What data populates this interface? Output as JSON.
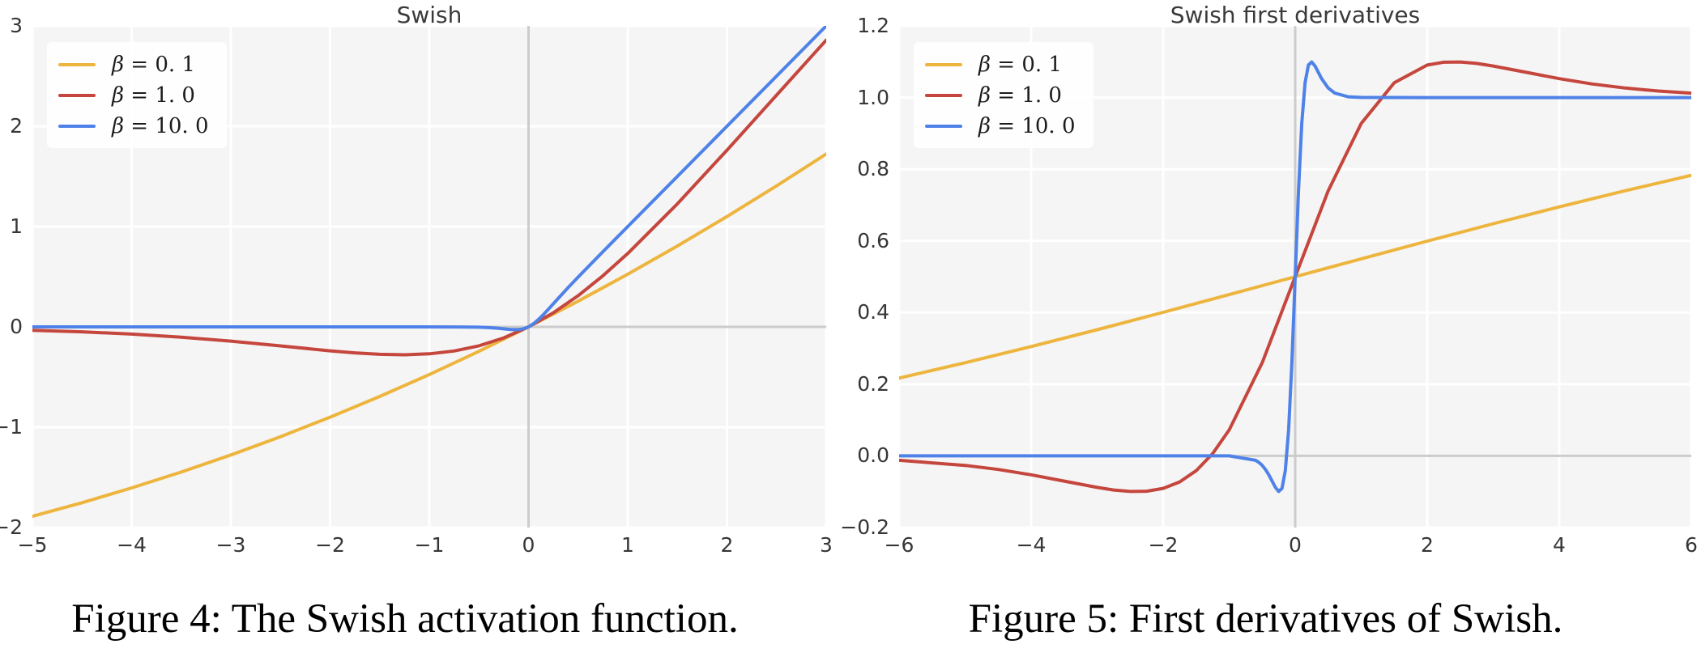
{
  "style": {
    "figure_bg": "#ffffff",
    "plot_bg": "#f5f5f5",
    "grid_color": "#ffffff",
    "zero_line_color": "#cccccc",
    "text_color": "#363636"
  },
  "captions": [
    {
      "text": "Figure 4: The Swish activation function."
    },
    {
      "text": "Figure 5: First derivatives of Swish."
    }
  ],
  "chart_data": [
    {
      "type": "line",
      "title": "Swish",
      "xlabel": "",
      "ylabel": "",
      "xlim": [
        -5,
        3
      ],
      "ylim": [
        -2,
        3
      ],
      "grid": true,
      "legend_position": "upper-left",
      "xtick_vals": [
        -5,
        -4,
        -3,
        -2,
        -1,
        0,
        1,
        2,
        3
      ],
      "xtick_labels": [
        "−5",
        "−4",
        "−3",
        "−2",
        "−1",
        "0",
        "1",
        "2",
        "3"
      ],
      "ytick_vals": [
        -2,
        -1,
        0,
        1,
        2,
        3
      ],
      "ytick_labels": [
        "−2",
        "−1",
        "0",
        "1",
        "2",
        "3"
      ],
      "series": [
        {
          "name": "beta = 0.1",
          "legend_sym": "β",
          "legend_rest": " = 0. 1",
          "color": "#EDB53E",
          "x": [
            -5,
            -4.5,
            -4,
            -3.5,
            -3,
            -2.5,
            -2,
            -1.5,
            -1,
            -0.5,
            0,
            0.5,
            1,
            1.5,
            2,
            2.5,
            3
          ],
          "y": [
            -1.8877,
            -1.7521,
            -1.6052,
            -1.4468,
            -1.2767,
            -1.0946,
            -0.9003,
            -0.6939,
            -0.475,
            -0.2437,
            0,
            0.2562,
            0.525,
            0.8061,
            1.0997,
            1.4055,
            1.7233
          ]
        },
        {
          "name": "beta = 1.0",
          "legend_sym": "β",
          "legend_rest": " = 1. 0",
          "color": "#C5463D",
          "x": [
            -5,
            -4.5,
            -4,
            -3.5,
            -3,
            -2.5,
            -2,
            -1.75,
            -1.5,
            -1.25,
            -1,
            -0.75,
            -0.5,
            -0.25,
            0,
            0.25,
            0.5,
            0.75,
            1,
            1.5,
            2,
            2.5,
            3
          ],
          "y": [
            -0.0335,
            -0.0494,
            -0.0719,
            -0.1026,
            -0.1423,
            -0.1896,
            -0.2384,
            -0.2591,
            -0.2736,
            -0.2784,
            -0.2689,
            -0.2406,
            -0.1888,
            -0.1095,
            0,
            0.1405,
            0.3112,
            0.5094,
            0.7311,
            1.2264,
            1.7616,
            2.3104,
            2.8577
          ]
        },
        {
          "name": "beta = 10.0",
          "legend_sym": "β",
          "legend_rest": " = 10. 0",
          "color": "#4F82E8",
          "x": [
            -5,
            -4,
            -3,
            -2,
            -1.5,
            -1,
            -0.7,
            -0.5,
            -0.4,
            -0.3,
            -0.25,
            -0.2,
            -0.15,
            -0.125,
            -0.1,
            -0.05,
            0,
            0.05,
            0.1,
            0.15,
            0.2,
            0.3,
            0.4,
            0.5,
            0.75,
            1,
            1.5,
            2,
            2.5,
            3
          ],
          "y": [
            0,
            0,
            0,
            0,
            0,
            -0.0001,
            -0.0006,
            -0.0033,
            -0.0072,
            -0.0142,
            -0.019,
            -0.0238,
            -0.0274,
            -0.0278,
            -0.0269,
            -0.0189,
            0,
            0.0311,
            0.0731,
            0.1226,
            0.1762,
            0.2858,
            0.3928,
            0.4967,
            0.7496,
            0.9999,
            1.5,
            2,
            2.5,
            3
          ]
        }
      ]
    },
    {
      "type": "line",
      "title": "Swish first derivatives",
      "xlabel": "",
      "ylabel": "",
      "xlim": [
        -6,
        6
      ],
      "ylim": [
        -0.2,
        1.2
      ],
      "grid": true,
      "legend_position": "upper-left",
      "xtick_vals": [
        -6,
        -4,
        -2,
        0,
        2,
        4,
        6
      ],
      "xtick_labels": [
        "−6",
        "−4",
        "−2",
        "0",
        "2",
        "4",
        "6"
      ],
      "ytick_vals": [
        -0.2,
        0.0,
        0.2,
        0.4,
        0.6,
        0.8,
        1.0,
        1.2
      ],
      "ytick_labels": [
        "−0.2",
        "0.0",
        "0.2",
        "0.4",
        "0.6",
        "0.8",
        "1.0",
        "1.2"
      ],
      "series": [
        {
          "name": "beta = 0.1",
          "legend_sym": "β",
          "legend_rest": " = 0. 1",
          "color": "#EDB53E",
          "x": [
            -6,
            -5,
            -4,
            -3,
            -2,
            -1,
            0,
            1,
            2,
            3,
            4,
            5,
            6
          ],
          "y": [
            0.2171,
            0.26,
            0.3052,
            0.3522,
            0.4007,
            0.4501,
            0.5,
            0.5499,
            0.5993,
            0.6478,
            0.6948,
            0.74,
            0.7829
          ]
        },
        {
          "name": "beta = 1.0",
          "legend_sym": "β",
          "legend_rest": " = 1. 0",
          "color": "#C5463D",
          "x": [
            -6,
            -5,
            -4.5,
            -4,
            -3.5,
            -3,
            -2.75,
            -2.5,
            -2.25,
            -2,
            -1.75,
            -1.5,
            -1.25,
            -1,
            -0.5,
            0,
            0.5,
            1,
            1.5,
            2,
            2.25,
            2.5,
            2.75,
            3,
            3.5,
            4,
            4.5,
            5,
            5.5,
            6
          ],
          "y": [
            -0.0123,
            -0.0266,
            -0.0379,
            -0.0527,
            -0.0703,
            -0.0881,
            -0.0952,
            -0.0994,
            -0.0987,
            -0.0908,
            -0.0727,
            -0.0413,
            0.0063,
            0.0723,
            0.26,
            0.5,
            0.74,
            0.9277,
            1.0413,
            1.0908,
            1.0987,
            1.0994,
            1.0952,
            1.0881,
            1.0703,
            1.0527,
            1.0379,
            1.0266,
            1.0182,
            1.0123
          ]
        },
        {
          "name": "beta = 10.0",
          "legend_sym": "β",
          "legend_rest": " = 10. 0",
          "color": "#4F82E8",
          "x": [
            -6,
            -4,
            -2,
            -1,
            -0.6,
            -0.55,
            -0.5,
            -0.45,
            -0.4,
            -0.35,
            -0.3,
            -0.25,
            -0.2,
            -0.15,
            -0.1,
            -0.05,
            0,
            0.05,
            0.1,
            0.15,
            0.2,
            0.25,
            0.3,
            0.4,
            0.5,
            0.6,
            0.8,
            1,
            2,
            4,
            6
          ],
          "y": [
            0,
            0,
            0,
            0,
            -0.0123,
            -0.0182,
            -0.0266,
            -0.0379,
            -0.0527,
            -0.0703,
            -0.0881,
            -0.0994,
            -0.0908,
            -0.0413,
            0.0723,
            0.26,
            0.5,
            0.74,
            0.9277,
            1.0413,
            1.0908,
            1.0994,
            1.0881,
            1.0527,
            1.0266,
            1.0123,
            1.0023,
            1.0005,
            1,
            1,
            1
          ]
        }
      ]
    }
  ]
}
